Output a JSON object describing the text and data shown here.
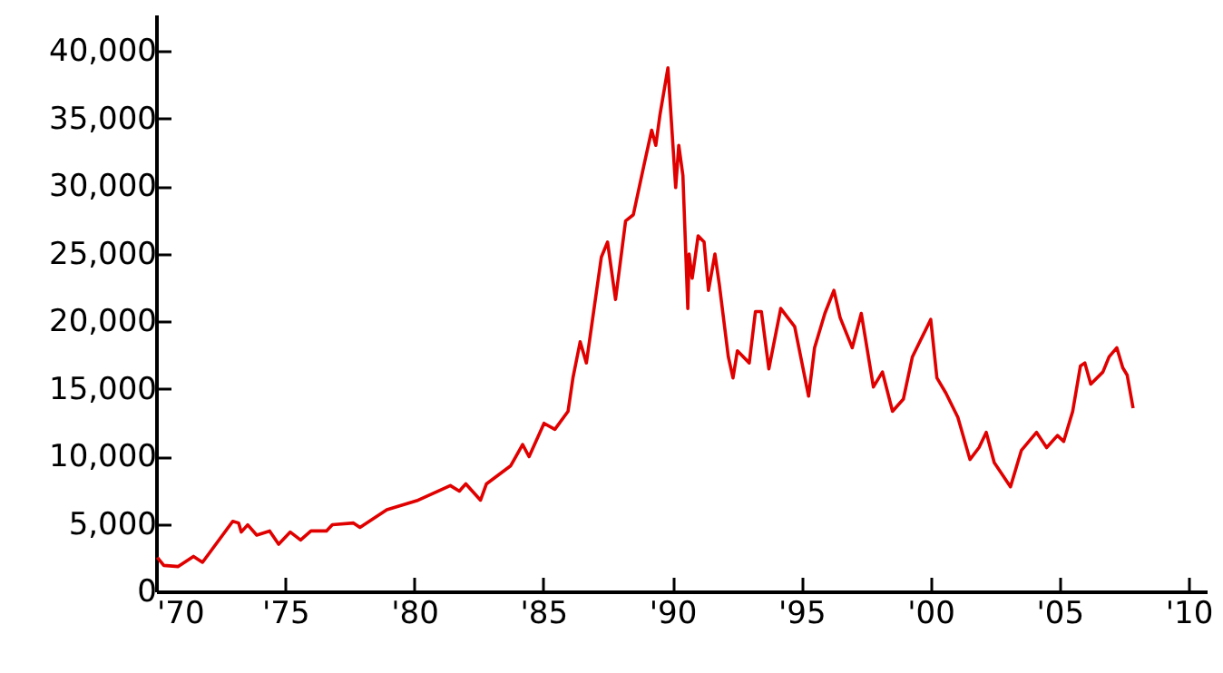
{
  "chart_data": {
    "type": "line",
    "xlim": [
      1970,
      2010.7
    ],
    "ylim": [
      0,
      42700
    ],
    "xticks": [
      {
        "value": 1970,
        "label": "'70"
      },
      {
        "value": 1975,
        "label": "'75"
      },
      {
        "value": 1980,
        "label": "'80"
      },
      {
        "value": 1985,
        "label": "'85"
      },
      {
        "value": 1990,
        "label": "'90"
      },
      {
        "value": 1995,
        "label": "'95"
      },
      {
        "value": 2000,
        "label": "'00"
      },
      {
        "value": 2005,
        "label": "'05"
      },
      {
        "value": 2010,
        "label": "'10"
      }
    ],
    "yticks": [
      0,
      {
        "value": 5000,
        "label": "5,000"
      },
      {
        "value": 10000,
        "label": "10,000"
      },
      {
        "value": 15000,
        "label": "15,000"
      },
      {
        "value": 20000,
        "label": "20,000"
      },
      {
        "value": 25000,
        "label": "25,000"
      },
      {
        "value": 30000,
        "label": "30,000"
      },
      {
        "value": 35000,
        "label": "35,000"
      },
      {
        "value": 40000,
        "label": "40,000"
      }
    ],
    "grid": false,
    "series": [
      {
        "color": "#e00000",
        "x": [
          1970.05,
          1970.3,
          1970.86,
          1971.45,
          1971.8,
          1972.97,
          1973.2,
          1973.3,
          1973.55,
          1973.9,
          1974.4,
          1974.75,
          1975.2,
          1975.6,
          1976.0,
          1976.6,
          1976.83,
          1977.65,
          1977.9,
          1978.94,
          1980.1,
          1981.4,
          1981.75,
          1982.0,
          1982.57,
          1982.8,
          1983.74,
          1984.2,
          1984.45,
          1985.03,
          1985.45,
          1985.96,
          1986.15,
          1986.43,
          1986.67,
          1987.25,
          1987.49,
          1987.8,
          1988.19,
          1988.49,
          1988.89,
          1989.2,
          1989.36,
          1989.52,
          1989.83,
          1990.13,
          1990.25,
          1990.41,
          1990.6,
          1990.65,
          1990.77,
          1991.0,
          1991.23,
          1991.4,
          1991.65,
          1991.82,
          1992.17,
          1992.35,
          1992.52,
          1992.98,
          1993.22,
          1993.45,
          1993.74,
          1994.2,
          1994.74,
          1995.28,
          1995.51,
          1995.91,
          1996.26,
          1996.5,
          1996.97,
          1997.32,
          1997.79,
          1998.14,
          1998.53,
          1998.95,
          1999.3,
          2000.01,
          2000.25,
          2000.6,
          2001.06,
          2001.53,
          2001.88,
          2002.16,
          2002.47,
          2003.1,
          2003.52,
          2004.11,
          2004.5,
          2004.92,
          2005.16,
          2005.51,
          2005.81,
          2005.98,
          2006.21,
          2006.68,
          2006.92,
          2007.22,
          2007.45,
          2007.62,
          2007.85
        ],
        "values": [
          2510,
          1920,
          1840,
          2590,
          2150,
          5190,
          5060,
          4390,
          4930,
          4160,
          4470,
          3490,
          4390,
          3800,
          4470,
          4470,
          4930,
          5060,
          4740,
          6040,
          6710,
          7830,
          7420,
          7960,
          6750,
          7960,
          9300,
          10870,
          9970,
          12440,
          11990,
          13330,
          15800,
          18480,
          16910,
          24740,
          25860,
          21610,
          27420,
          27880,
          31450,
          34140,
          33020,
          35260,
          38750,
          29890,
          33020,
          30780,
          20940,
          24970,
          23180,
          26310,
          25860,
          22280,
          24970,
          22730,
          17360,
          15800,
          17810,
          16910,
          20710,
          20710,
          16470,
          20940,
          19600,
          14450,
          18030,
          20580,
          22280,
          20270,
          18030,
          20580,
          15130,
          16240,
          13330,
          14230,
          17360,
          20130,
          15800,
          14670,
          12890,
          9760,
          10640,
          11770,
          9530,
          7740,
          10430,
          11770,
          10640,
          11540,
          11100,
          13330,
          16690,
          16910,
          15340,
          16240,
          17360,
          18030,
          16550,
          16010,
          13560
        ]
      }
    ]
  }
}
